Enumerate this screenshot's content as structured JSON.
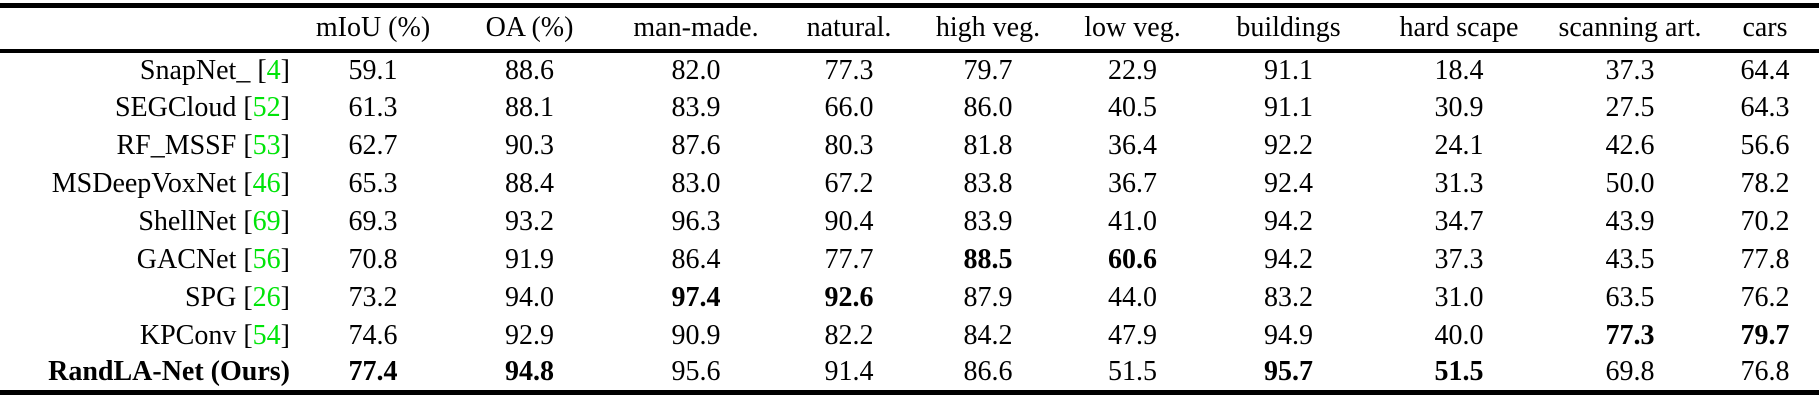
{
  "table": {
    "citation_color": "#00e409",
    "text_color": "#000000",
    "background_color": "#ffffff",
    "columns": [
      "",
      "mIoU (%)",
      "OA (%)",
      "man-made.",
      "natural.",
      "high veg.",
      "low veg.",
      "buildings",
      "hard scape",
      "scanning art.",
      "cars"
    ],
    "rows": [
      {
        "name": "SnapNet_",
        "ref": "4",
        "bold_name": false,
        "values": [
          "59.1",
          "88.6",
          "82.0",
          "77.3",
          "79.7",
          "22.9",
          "91.1",
          "18.4",
          "37.3",
          "64.4"
        ],
        "bold": [
          false,
          false,
          false,
          false,
          false,
          false,
          false,
          false,
          false,
          false
        ]
      },
      {
        "name": "SEGCloud",
        "ref": "52",
        "bold_name": false,
        "values": [
          "61.3",
          "88.1",
          "83.9",
          "66.0",
          "86.0",
          "40.5",
          "91.1",
          "30.9",
          "27.5",
          "64.3"
        ],
        "bold": [
          false,
          false,
          false,
          false,
          false,
          false,
          false,
          false,
          false,
          false
        ]
      },
      {
        "name": "RF_MSSF",
        "ref": "53",
        "bold_name": false,
        "values": [
          "62.7",
          "90.3",
          "87.6",
          "80.3",
          "81.8",
          "36.4",
          "92.2",
          "24.1",
          "42.6",
          "56.6"
        ],
        "bold": [
          false,
          false,
          false,
          false,
          false,
          false,
          false,
          false,
          false,
          false
        ]
      },
      {
        "name": "MSDeepVoxNet",
        "ref": "46",
        "bold_name": false,
        "values": [
          "65.3",
          "88.4",
          "83.0",
          "67.2",
          "83.8",
          "36.7",
          "92.4",
          "31.3",
          "50.0",
          "78.2"
        ],
        "bold": [
          false,
          false,
          false,
          false,
          false,
          false,
          false,
          false,
          false,
          false
        ]
      },
      {
        "name": "ShellNet",
        "ref": "69",
        "bold_name": false,
        "values": [
          "69.3",
          "93.2",
          "96.3",
          "90.4",
          "83.9",
          "41.0",
          "94.2",
          "34.7",
          "43.9",
          "70.2"
        ],
        "bold": [
          false,
          false,
          false,
          false,
          false,
          false,
          false,
          false,
          false,
          false
        ]
      },
      {
        "name": "GACNet",
        "ref": "56",
        "bold_name": false,
        "values": [
          "70.8",
          "91.9",
          "86.4",
          "77.7",
          "88.5",
          "60.6",
          "94.2",
          "37.3",
          "43.5",
          "77.8"
        ],
        "bold": [
          false,
          false,
          false,
          false,
          true,
          true,
          false,
          false,
          false,
          false
        ]
      },
      {
        "name": "SPG",
        "ref": "26",
        "bold_name": false,
        "values": [
          "73.2",
          "94.0",
          "97.4",
          "92.6",
          "87.9",
          "44.0",
          "83.2",
          "31.0",
          "63.5",
          "76.2"
        ],
        "bold": [
          false,
          false,
          true,
          true,
          false,
          false,
          false,
          false,
          false,
          false
        ]
      },
      {
        "name": "KPConv",
        "ref": "54",
        "bold_name": false,
        "values": [
          "74.6",
          "92.9",
          "90.9",
          "82.2",
          "84.2",
          "47.9",
          "94.9",
          "40.0",
          "77.3",
          "79.7"
        ],
        "bold": [
          false,
          false,
          false,
          false,
          false,
          false,
          false,
          false,
          true,
          true
        ]
      },
      {
        "name": "RandLA-Net (Ours)",
        "ref": "",
        "bold_name": true,
        "values": [
          "77.4",
          "94.8",
          "95.6",
          "91.4",
          "86.6",
          "51.5",
          "95.7",
          "51.5",
          "69.8",
          "76.8"
        ],
        "bold": [
          true,
          true,
          false,
          false,
          false,
          false,
          true,
          true,
          false,
          false
        ]
      }
    ]
  }
}
